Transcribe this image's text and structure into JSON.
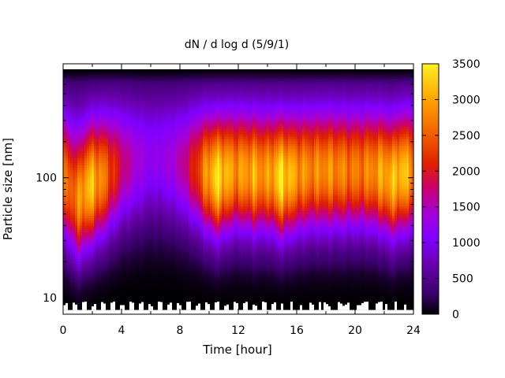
{
  "chart_data": {
    "type": "heatmap",
    "title": "dN / d log d (5/9/1)",
    "xlabel": "Time [hour]",
    "ylabel": "Particle size [nm]",
    "xlim": [
      0,
      24
    ],
    "xticks": [
      0,
      4,
      8,
      12,
      16,
      20,
      24
    ],
    "x_tick_labels": [
      "0",
      "4",
      "8",
      "12",
      "16",
      "20",
      "24"
    ],
    "y_scale": "log",
    "ylim": [
      8,
      800
    ],
    "yticks": [
      10,
      100
    ],
    "y_tick_labels": [
      "10",
      "100"
    ],
    "colorbar": {
      "range": [
        0,
        3500
      ],
      "ticks": [
        0,
        500,
        1000,
        1500,
        2000,
        2500,
        3000,
        3500
      ],
      "tick_labels": [
        "0",
        "500",
        "1000",
        "1500",
        "2000",
        "2500",
        "3000",
        "3500"
      ],
      "palette": [
        "#000000",
        "#5a0096",
        "#8000ff",
        "#c0009a",
        "#e02000",
        "#f56000",
        "#ffa000",
        "#fff020"
      ]
    },
    "peak_size_nm": [
      [
        0,
        90
      ],
      [
        0.5,
        70
      ],
      [
        1,
        60
      ],
      [
        1.5,
        70
      ],
      [
        2,
        80
      ],
      [
        3,
        90
      ],
      [
        4,
        100
      ],
      [
        5,
        100
      ],
      [
        6,
        100
      ],
      [
        7,
        100
      ],
      [
        8,
        100
      ],
      [
        9,
        100
      ],
      [
        10,
        95
      ],
      [
        10.5,
        90
      ],
      [
        11,
        95
      ],
      [
        12,
        100
      ],
      [
        13,
        95
      ],
      [
        14,
        95
      ],
      [
        15,
        90
      ],
      [
        16,
        95
      ],
      [
        17,
        100
      ],
      [
        18,
        100
      ],
      [
        19,
        100
      ],
      [
        20,
        100
      ],
      [
        21,
        100
      ],
      [
        22,
        95
      ],
      [
        22.5,
        85
      ],
      [
        23,
        95
      ],
      [
        24,
        100
      ]
    ],
    "peak_intensity": [
      [
        0,
        2100
      ],
      [
        1,
        2500
      ],
      [
        1.7,
        2900
      ],
      [
        2.5,
        2500
      ],
      [
        3.5,
        1700
      ],
      [
        4,
        1300
      ],
      [
        5,
        900
      ],
      [
        6,
        650
      ],
      [
        7,
        750
      ],
      [
        8,
        1000
      ],
      [
        9,
        1600
      ],
      [
        10,
        2600
      ],
      [
        10.6,
        3000
      ],
      [
        11.5,
        2500
      ],
      [
        12,
        2400
      ],
      [
        13,
        2600
      ],
      [
        14,
        2400
      ],
      [
        15,
        3050
      ],
      [
        15.5,
        2700
      ],
      [
        16,
        2500
      ],
      [
        17,
        2300
      ],
      [
        18,
        2400
      ],
      [
        19,
        2300
      ],
      [
        20,
        2200
      ],
      [
        21,
        2300
      ],
      [
        22,
        2600
      ],
      [
        23,
        2800
      ],
      [
        24,
        2500
      ]
    ],
    "notes_white_gaps_near_lower_edge": true
  }
}
